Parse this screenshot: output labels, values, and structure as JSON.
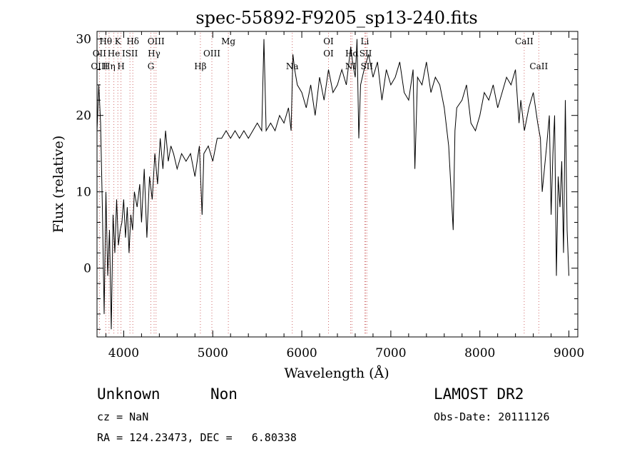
{
  "chart_data": {
    "type": "line",
    "title": "spec-55892-F9205_sp13-240.fits",
    "xlabel": "Wavelength (Å)",
    "ylabel": "Flux (relative)",
    "xlim": [
      3700,
      9100
    ],
    "ylim": [
      -9,
      31
    ],
    "x_ticks": [
      4000,
      5000,
      6000,
      7000,
      8000,
      9000
    ],
    "y_ticks": [
      0,
      10,
      20,
      30
    ],
    "grid": false,
    "line_color": "#000000",
    "marker_color": "#d06a6a",
    "series": [
      {
        "x": [
          3700,
          3720,
          3740,
          3760,
          3780,
          3800,
          3820,
          3840,
          3860,
          3880,
          3900,
          3920,
          3940,
          3960,
          3980,
          4000,
          4020,
          4040,
          4060,
          4080,
          4100,
          4120,
          4150,
          4180,
          4200,
          4230,
          4260,
          4290,
          4320,
          4350,
          4380,
          4410,
          4440,
          4470,
          4500,
          4530,
          4560,
          4600,
          4650,
          4700,
          4750,
          4800,
          4850,
          4880,
          4900,
          4950,
          5000,
          5050,
          5100,
          5150,
          5200,
          5250,
          5300,
          5350,
          5400,
          5450,
          5500,
          5550,
          5575,
          5600,
          5650,
          5700,
          5750,
          5800,
          5850,
          5880,
          5900,
          5920,
          5950,
          6000,
          6050,
          6100,
          6150,
          6200,
          6250,
          6300,
          6350,
          6400,
          6450,
          6500,
          6550,
          6570,
          6600,
          6620,
          6640,
          6660,
          6700,
          6750,
          6800,
          6850,
          6900,
          6950,
          7000,
          7050,
          7100,
          7150,
          7200,
          7250,
          7270,
          7300,
          7350,
          7400,
          7450,
          7500,
          7550,
          7600,
          7650,
          7700,
          7720,
          7740,
          7800,
          7850,
          7900,
          7950,
          8000,
          8050,
          8100,
          8150,
          8200,
          8250,
          8300,
          8350,
          8400,
          8440,
          8460,
          8500,
          8550,
          8600,
          8650,
          8680,
          8700,
          8750,
          8780,
          8800,
          8820,
          8840,
          8860,
          8880,
          8900,
          8920,
          8940,
          8960,
          8980,
          9000
        ],
        "y": [
          18,
          24,
          19,
          8,
          -6,
          10,
          -1,
          5,
          -8,
          7,
          2,
          9,
          3,
          5,
          6,
          9,
          4,
          8,
          2,
          7,
          5,
          10,
          8,
          11,
          6,
          13,
          4,
          12,
          9,
          15,
          11,
          17,
          13,
          18,
          14,
          16,
          15,
          13,
          15,
          14,
          15,
          12,
          16,
          7,
          15,
          16,
          14,
          17,
          17,
          18,
          17,
          18,
          17,
          18,
          17,
          18,
          19,
          18,
          30,
          18,
          19,
          18,
          20,
          19,
          21,
          18,
          28,
          26,
          24,
          23,
          21,
          24,
          20,
          25,
          22,
          26,
          23,
          24,
          26,
          24,
          29,
          27,
          25,
          30,
          17,
          24,
          26,
          28,
          25,
          27,
          22,
          26,
          24,
          25,
          27,
          23,
          22,
          26,
          13,
          25,
          24,
          27,
          23,
          25,
          24,
          21,
          16,
          5,
          18,
          21,
          22,
          24,
          19,
          18,
          20,
          23,
          22,
          24,
          21,
          23,
          25,
          24,
          26,
          19,
          22,
          18,
          21,
          23,
          19,
          17,
          10,
          16,
          20,
          7,
          15,
          20,
          -1,
          12,
          8,
          14,
          2,
          22,
          5,
          -1
        ]
      }
    ],
    "annotations": [
      {
        "label": "Hθ",
        "x": 3798,
        "row": 1
      },
      {
        "label": "OII",
        "x": 3727,
        "row": 2
      },
      {
        "label": "OIII",
        "x": 3727,
        "row": 3
      },
      {
        "label": "K",
        "x": 3934,
        "row": 1
      },
      {
        "label": "He",
        "x": 3889,
        "row": 2
      },
      {
        "label": "Hη",
        "x": 3835,
        "row": 3
      },
      {
        "label": "Hδ",
        "x": 4102,
        "row": 1
      },
      {
        "label": "ISII",
        "x": 4070,
        "row": 2
      },
      {
        "label": "H",
        "x": 3969,
        "row": 3
      },
      {
        "label": "OIII",
        "x": 4363,
        "row": 1
      },
      {
        "label": "Hγ",
        "x": 4341,
        "row": 2
      },
      {
        "label": "G",
        "x": 4305,
        "row": 3
      },
      {
        "label": "Mg",
        "x": 5175,
        "row": 1
      },
      {
        "label": "OIII",
        "x": 4990,
        "row": 2
      },
      {
        "label": "Hβ",
        "x": 4861,
        "row": 3
      },
      {
        "label": "Na",
        "x": 5893,
        "row": 3
      },
      {
        "label": "OI",
        "x": 6300,
        "row": 1
      },
      {
        "label": "OI",
        "x": 6300,
        "row": 2
      },
      {
        "label": "Hα",
        "x": 6563,
        "row": 2
      },
      {
        "label": "NI",
        "x": 6548,
        "row": 3
      },
      {
        "label": "Li",
        "x": 6708,
        "row": 1
      },
      {
        "label": "SII",
        "x": 6717,
        "row": 2
      },
      {
        "label": "SII",
        "x": 6731,
        "row": 3
      },
      {
        "label": "CaII",
        "x": 8498,
        "row": 1
      },
      {
        "label": "CaII",
        "x": 8662,
        "row": 3
      }
    ]
  },
  "info": {
    "class_label": "Unknown",
    "subclass_label": "Non",
    "survey": "LAMOST DR2",
    "cz": "cz = NaN",
    "obs_date": "Obs-Date: 20111126",
    "coords": "RA = 124.23473, DEC =   6.80338"
  }
}
